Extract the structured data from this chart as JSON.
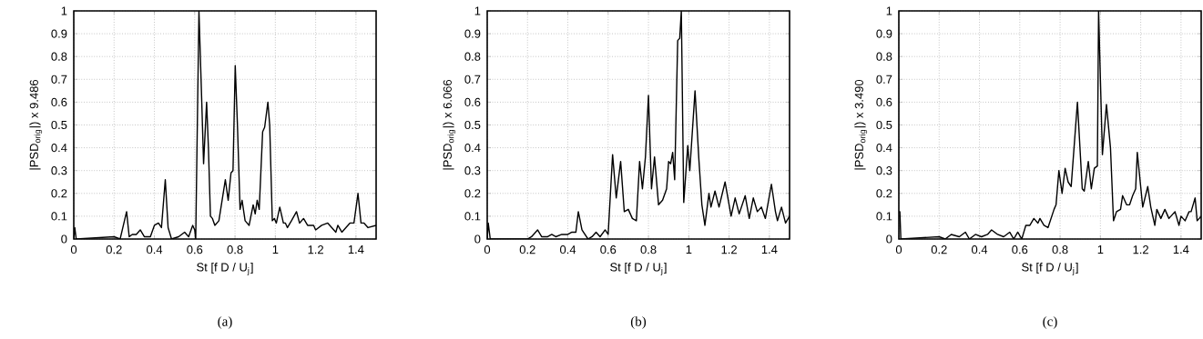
{
  "chart_data": [
    {
      "type": "line",
      "xlabel": "St [f D / U$_{j}$]",
      "ylabel": "|PSD$_{orig}$|) x 9.486",
      "annotations": [
        "(a)"
      ],
      "color": "#000000",
      "grid": true,
      "xlim": [
        0,
        1.5
      ],
      "ylim": [
        0,
        1
      ],
      "xticks": [
        0,
        0.2,
        0.4,
        0.6,
        0.8,
        1,
        1.2,
        1.4
      ],
      "yticks": [
        0,
        0.1,
        0.2,
        0.3,
        0.4,
        0.5,
        0.6,
        0.7,
        0.8,
        0.9,
        1
      ],
      "x": [
        0,
        0.005,
        0.012,
        0.2,
        0.23,
        0.262,
        0.275,
        0.29,
        0.31,
        0.33,
        0.35,
        0.38,
        0.4,
        0.42,
        0.435,
        0.454,
        0.468,
        0.485,
        0.52,
        0.55,
        0.57,
        0.59,
        0.6,
        0.605,
        0.621,
        0.635,
        0.644,
        0.659,
        0.668,
        0.678,
        0.688,
        0.7,
        0.72,
        0.752,
        0.766,
        0.78,
        0.79,
        0.801,
        0.812,
        0.825,
        0.835,
        0.85,
        0.86,
        0.87,
        0.89,
        0.9,
        0.91,
        0.92,
        0.937,
        0.947,
        0.963,
        0.972,
        0.985,
        0.995,
        1.005,
        1.022,
        1.04,
        1.05,
        1.06,
        1.08,
        1.105,
        1.12,
        1.14,
        1.16,
        1.19,
        1.2,
        1.23,
        1.26,
        1.28,
        1.3,
        1.31,
        1.33,
        1.35,
        1.37,
        1.39,
        1.41,
        1.425,
        1.44,
        1.46,
        1.5
      ],
      "values": [
        0,
        0.05,
        0,
        0.01,
        0,
        0.12,
        0.01,
        0.02,
        0.02,
        0.04,
        0.01,
        0.01,
        0.06,
        0.07,
        0.05,
        0.26,
        0.05,
        0,
        0.01,
        0.03,
        0.01,
        0.06,
        0.04,
        0,
        1,
        0.6,
        0.33,
        0.6,
        0.4,
        0.1,
        0.09,
        0.06,
        0.08,
        0.26,
        0.17,
        0.29,
        0.3,
        0.76,
        0.5,
        0.13,
        0.17,
        0.08,
        0.07,
        0.06,
        0.15,
        0.11,
        0.17,
        0.13,
        0.47,
        0.49,
        0.6,
        0.5,
        0.08,
        0.09,
        0.07,
        0.14,
        0.07,
        0.07,
        0.05,
        0.08,
        0.12,
        0.07,
        0.09,
        0.06,
        0.06,
        0.04,
        0.06,
        0.07,
        0.05,
        0.03,
        0.06,
        0.03,
        0.05,
        0.07,
        0.07,
        0.2,
        0.07,
        0.07,
        0.05,
        0.06
      ]
    },
    {
      "type": "line",
      "xlabel": "St [f D / U$_{j}$]",
      "ylabel": "|PSD$_{orig}$|) x 6.066",
      "annotations": [
        "(b)"
      ],
      "color": "#000000",
      "grid": true,
      "xlim": [
        0,
        1.5
      ],
      "ylim": [
        0,
        1
      ],
      "xticks": [
        0,
        0.2,
        0.4,
        0.6,
        0.8,
        1,
        1.2,
        1.4
      ],
      "yticks": [
        0,
        0.1,
        0.2,
        0.3,
        0.4,
        0.5,
        0.6,
        0.7,
        0.8,
        0.9,
        1
      ],
      "x": [
        0,
        0.005,
        0.015,
        0.2,
        0.22,
        0.25,
        0.27,
        0.3,
        0.32,
        0.34,
        0.37,
        0.4,
        0.42,
        0.44,
        0.452,
        0.47,
        0.5,
        0.52,
        0.54,
        0.56,
        0.585,
        0.6,
        0.622,
        0.64,
        0.662,
        0.68,
        0.7,
        0.72,
        0.74,
        0.756,
        0.77,
        0.785,
        0.8,
        0.815,
        0.83,
        0.85,
        0.87,
        0.89,
        0.9,
        0.91,
        0.92,
        0.93,
        0.945,
        0.955,
        0.963,
        0.975,
        0.995,
        1.005,
        1.031,
        1.05,
        1.065,
        1.08,
        1.1,
        1.11,
        1.13,
        1.15,
        1.18,
        1.21,
        1.23,
        1.25,
        1.28,
        1.3,
        1.32,
        1.34,
        1.36,
        1.38,
        1.41,
        1.43,
        1.44,
        1.46,
        1.48,
        1.5
      ],
      "values": [
        0,
        0.07,
        0,
        0,
        0.01,
        0.04,
        0.01,
        0.01,
        0.02,
        0.01,
        0.02,
        0.02,
        0.03,
        0.03,
        0.12,
        0.04,
        0,
        0.01,
        0.03,
        0.01,
        0.04,
        0.02,
        0.37,
        0.18,
        0.34,
        0.12,
        0.13,
        0.09,
        0.08,
        0.34,
        0.22,
        0.36,
        0.63,
        0.22,
        0.36,
        0.15,
        0.17,
        0.22,
        0.34,
        0.33,
        0.38,
        0.26,
        0.87,
        0.88,
        1,
        0.16,
        0.41,
        0.3,
        0.65,
        0.35,
        0.15,
        0.06,
        0.2,
        0.14,
        0.21,
        0.14,
        0.25,
        0.1,
        0.18,
        0.11,
        0.19,
        0.09,
        0.18,
        0.12,
        0.14,
        0.09,
        0.24,
        0.12,
        0.08,
        0.14,
        0.07,
        0.1
      ]
    },
    {
      "type": "line",
      "xlabel": "St [f D / U$_{j}$]",
      "ylabel": "|PSD$_{orig}$|) x 3.490",
      "annotations": [
        "(c)"
      ],
      "color": "#000000",
      "grid": true,
      "xlim": [
        0,
        1.5
      ],
      "ylim": [
        0,
        1
      ],
      "xticks": [
        0,
        0.2,
        0.4,
        0.6,
        0.8,
        1,
        1.2,
        1.4
      ],
      "yticks": [
        0,
        0.1,
        0.2,
        0.3,
        0.4,
        0.5,
        0.6,
        0.7,
        0.8,
        0.9,
        1
      ],
      "x": [
        0,
        0.005,
        0.01,
        0.2,
        0.23,
        0.26,
        0.3,
        0.33,
        0.35,
        0.38,
        0.41,
        0.44,
        0.46,
        0.49,
        0.52,
        0.55,
        0.57,
        0.59,
        0.61,
        0.63,
        0.65,
        0.67,
        0.69,
        0.7,
        0.72,
        0.74,
        0.77,
        0.78,
        0.794,
        0.81,
        0.825,
        0.84,
        0.855,
        0.886,
        0.91,
        0.92,
        0.94,
        0.955,
        0.97,
        0.985,
        0.991,
        1.01,
        1.03,
        1.05,
        1.065,
        1.08,
        1.1,
        1.11,
        1.13,
        1.145,
        1.16,
        1.175,
        1.183,
        1.21,
        1.235,
        1.25,
        1.27,
        1.28,
        1.3,
        1.32,
        1.34,
        1.37,
        1.39,
        1.4,
        1.42,
        1.44,
        1.45,
        1.47,
        1.48,
        1.5
      ],
      "values": [
        0.12,
        0.12,
        0,
        0.01,
        0,
        0.02,
        0.01,
        0.03,
        0,
        0.02,
        0.01,
        0.02,
        0.04,
        0.02,
        0.01,
        0.03,
        0,
        0.03,
        0,
        0.06,
        0.06,
        0.09,
        0.07,
        0.09,
        0.06,
        0.05,
        0.13,
        0.15,
        0.3,
        0.2,
        0.31,
        0.25,
        0.23,
        0.6,
        0.22,
        0.21,
        0.34,
        0.22,
        0.31,
        0.32,
        1,
        0.37,
        0.59,
        0.4,
        0.08,
        0.12,
        0.13,
        0.19,
        0.15,
        0.15,
        0.19,
        0.22,
        0.38,
        0.14,
        0.23,
        0.14,
        0.06,
        0.13,
        0.09,
        0.13,
        0.09,
        0.12,
        0.06,
        0.1,
        0.08,
        0.12,
        0.12,
        0.18,
        0.08,
        0.1
      ]
    }
  ]
}
